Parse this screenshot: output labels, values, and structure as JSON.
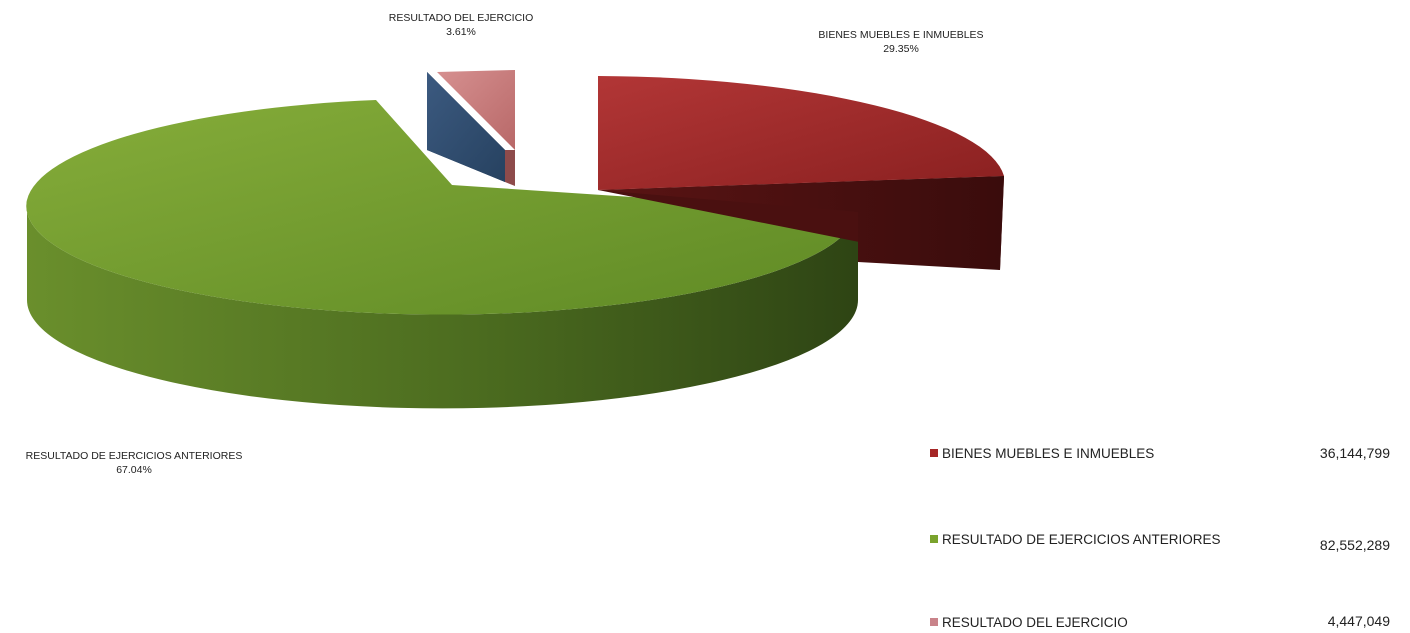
{
  "chart_data": {
    "type": "pie",
    "style": "3d-exploded",
    "slices": [
      {
        "name": "BIENES MUEBLES E INMUEBLES",
        "value": 36144799,
        "percent_label": "29.35%",
        "color": "#9c2b2b"
      },
      {
        "name": "RESULTADO DE EJERCICIOS ANTERIORES",
        "value": 82552289,
        "percent_label": "67.04%",
        "color": "#6e9a2c"
      },
      {
        "name": "RESULTADO DEL EJERCICIO",
        "value": 4447049,
        "percent_label": "3.61%",
        "color": "#c97a7a"
      }
    ],
    "extra_slice_color": "#2e4a6e",
    "legend": [
      {
        "label": "BIENES MUEBLES E INMUEBLES",
        "value_text": "36,144,799",
        "color": "#a52626"
      },
      {
        "label": "RESULTADO DE EJERCICIOS ANTERIORES",
        "value_text": "82,552,289",
        "color": "#7aa32d"
      },
      {
        "label": "RESULTADO DEL EJERCICIO",
        "value_text": "4,447,049",
        "color": "#c9838a"
      }
    ],
    "legend_position": "bottom-right"
  }
}
